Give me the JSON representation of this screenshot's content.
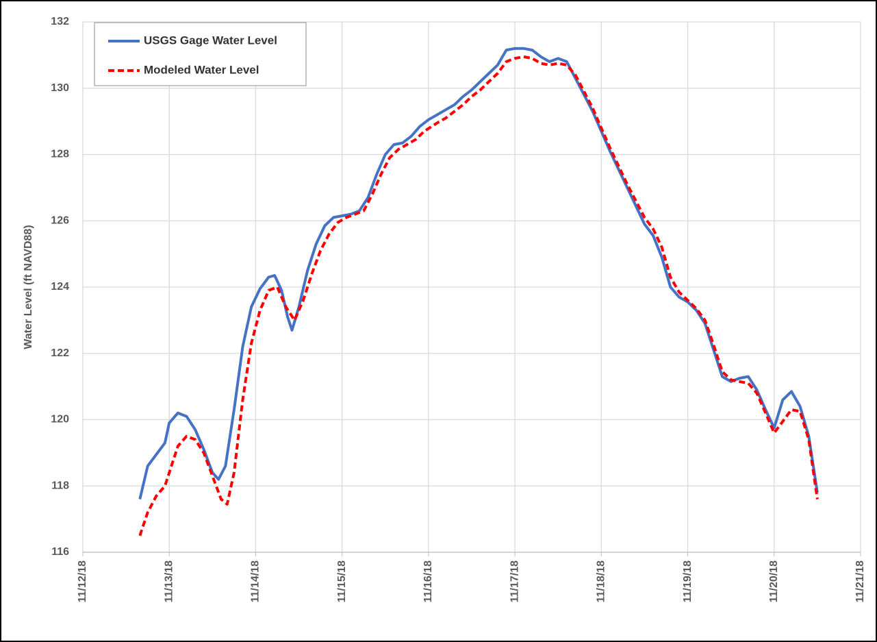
{
  "chart_data": {
    "type": "line",
    "ylabel": "Water Level (ft NAVD88)",
    "xlim": [
      12,
      21
    ],
    "xticks": [
      {
        "value": 12,
        "label": "11/12/18"
      },
      {
        "value": 13,
        "label": "11/13/18"
      },
      {
        "value": 14,
        "label": "11/14/18"
      },
      {
        "value": 15,
        "label": "11/15/18"
      },
      {
        "value": 16,
        "label": "11/16/18"
      },
      {
        "value": 17,
        "label": "11/17/18"
      },
      {
        "value": 18,
        "label": "11/18/18"
      },
      {
        "value": 19,
        "label": "11/19/18"
      },
      {
        "value": 20,
        "label": "11/20/18"
      },
      {
        "value": 21,
        "label": "11/21/18"
      }
    ],
    "ylim": [
      116,
      132
    ],
    "yticks": [
      116,
      118,
      120,
      122,
      124,
      126,
      128,
      130,
      132
    ],
    "grid": true,
    "legend": "upper left",
    "series": [
      {
        "name": "USGS Gage Water Level",
        "color": "#4472c4",
        "dash": false,
        "x": [
          12.66,
          12.75,
          12.85,
          12.95,
          13.0,
          13.1,
          13.2,
          13.3,
          13.4,
          13.5,
          13.57,
          13.65,
          13.75,
          13.85,
          13.95,
          14.05,
          14.15,
          14.22,
          14.3,
          14.37,
          14.42,
          14.5,
          14.6,
          14.7,
          14.8,
          14.9,
          15.0,
          15.1,
          15.2,
          15.3,
          15.4,
          15.5,
          15.6,
          15.7,
          15.8,
          15.9,
          16.0,
          16.1,
          16.2,
          16.3,
          16.4,
          16.5,
          16.6,
          16.7,
          16.8,
          16.9,
          17.0,
          17.1,
          17.2,
          17.3,
          17.4,
          17.5,
          17.6,
          17.7,
          17.8,
          17.9,
          18.0,
          18.1,
          18.2,
          18.3,
          18.4,
          18.5,
          18.6,
          18.7,
          18.8,
          18.9,
          19.0,
          19.1,
          19.2,
          19.3,
          19.4,
          19.5,
          19.6,
          19.7,
          19.8,
          19.9,
          20.0,
          20.1,
          20.2,
          20.3,
          20.4,
          20.5
        ],
        "values": [
          117.6,
          118.6,
          118.95,
          119.3,
          119.9,
          120.2,
          120.1,
          119.7,
          119.1,
          118.4,
          118.2,
          118.6,
          120.3,
          122.2,
          123.4,
          123.95,
          124.3,
          124.35,
          123.9,
          123.1,
          122.7,
          123.4,
          124.5,
          125.3,
          125.85,
          126.1,
          126.15,
          126.2,
          126.3,
          126.7,
          127.4,
          128.0,
          128.3,
          128.35,
          128.55,
          128.85,
          129.05,
          129.2,
          129.35,
          129.5,
          129.75,
          129.95,
          130.2,
          130.45,
          130.7,
          131.15,
          131.2,
          131.2,
          131.15,
          130.95,
          130.8,
          130.9,
          130.8,
          130.3,
          129.8,
          129.3,
          128.7,
          128.1,
          127.55,
          127.0,
          126.45,
          125.9,
          125.55,
          124.9,
          124.0,
          123.7,
          123.55,
          123.3,
          122.9,
          122.1,
          121.3,
          121.15,
          121.25,
          121.3,
          120.9,
          120.3,
          119.75,
          120.6,
          120.85,
          120.4,
          119.5,
          117.8
        ]
      },
      {
        "name": "Modeled Water Level",
        "color": "#ff0000",
        "dash": true,
        "x": [
          12.66,
          12.75,
          12.85,
          12.95,
          13.0,
          13.1,
          13.2,
          13.3,
          13.4,
          13.5,
          13.6,
          13.67,
          13.75,
          13.85,
          13.95,
          14.05,
          14.15,
          14.25,
          14.35,
          14.45,
          14.55,
          14.65,
          14.75,
          14.85,
          14.95,
          15.05,
          15.15,
          15.25,
          15.35,
          15.45,
          15.55,
          15.65,
          15.75,
          15.85,
          15.95,
          16.1,
          16.2,
          16.3,
          16.4,
          16.5,
          16.6,
          16.7,
          16.8,
          16.9,
          17.0,
          17.1,
          17.2,
          17.3,
          17.4,
          17.5,
          17.6,
          17.7,
          17.8,
          17.9,
          18.0,
          18.1,
          18.2,
          18.3,
          18.4,
          18.5,
          18.6,
          18.7,
          18.8,
          18.9,
          19.0,
          19.1,
          19.2,
          19.3,
          19.4,
          19.5,
          19.6,
          19.7,
          19.8,
          19.9,
          20.0,
          20.1,
          20.2,
          20.3,
          20.4,
          20.5
        ],
        "values": [
          116.5,
          117.2,
          117.7,
          118.0,
          118.4,
          119.2,
          119.5,
          119.4,
          119.0,
          118.3,
          117.6,
          117.45,
          118.4,
          120.6,
          122.3,
          123.3,
          123.9,
          124.0,
          123.4,
          123.0,
          123.6,
          124.4,
          125.1,
          125.6,
          125.95,
          126.1,
          126.2,
          126.3,
          126.8,
          127.4,
          127.9,
          128.15,
          128.3,
          128.45,
          128.7,
          128.95,
          129.1,
          129.3,
          129.5,
          129.75,
          129.95,
          130.2,
          130.45,
          130.8,
          130.9,
          130.95,
          130.9,
          130.75,
          130.7,
          130.75,
          130.7,
          130.4,
          129.9,
          129.4,
          128.8,
          128.2,
          127.65,
          127.1,
          126.6,
          126.1,
          125.75,
          125.2,
          124.3,
          123.85,
          123.6,
          123.35,
          123.0,
          122.25,
          121.45,
          121.2,
          121.15,
          121.1,
          120.8,
          120.2,
          119.6,
          119.95,
          120.3,
          120.25,
          119.4,
          117.6
        ]
      }
    ]
  }
}
